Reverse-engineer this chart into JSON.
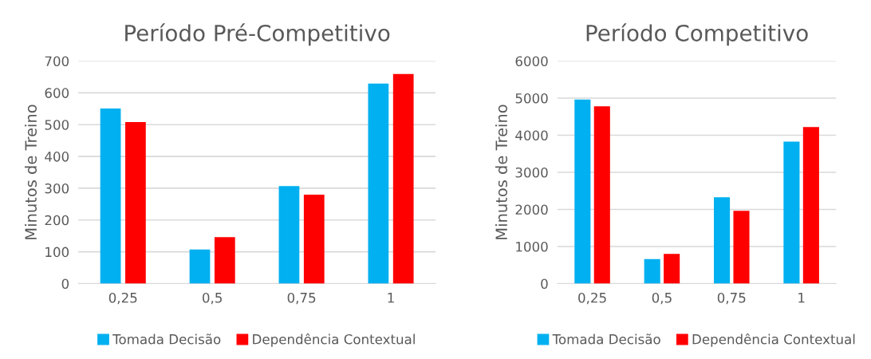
{
  "chart_data": [
    {
      "type": "bar",
      "title": "Período Pré-Competitivo",
      "ylabel": "Minutos de Treino",
      "categories": [
        "0,25",
        "0,5",
        "0,75",
        "1"
      ],
      "series": [
        {
          "name": "Tomada Decisão",
          "color": "#00b0f0",
          "values": [
            551,
            107,
            307,
            629
          ]
        },
        {
          "name": "Dependência Contextual",
          "color": "#ff0000",
          "values": [
            508,
            146,
            280,
            659
          ]
        }
      ],
      "ylim": [
        0,
        700
      ],
      "yticks": [
        0,
        100,
        200,
        300,
        400,
        500,
        600,
        700
      ],
      "grid": "y",
      "legend": "bottom"
    },
    {
      "type": "bar",
      "title": "Período Competitivo",
      "ylabel": "Minutos de Treino",
      "categories": [
        "0,25",
        "0,5",
        "0,75",
        "1"
      ],
      "series": [
        {
          "name": "Tomada Decisão",
          "color": "#00b0f0",
          "values": [
            4960,
            660,
            2330,
            3830
          ]
        },
        {
          "name": "Dependência Contextual",
          "color": "#ff0000",
          "values": [
            4780,
            800,
            1960,
            4220
          ]
        }
      ],
      "ylim": [
        0,
        6000
      ],
      "yticks": [
        0,
        1000,
        2000,
        3000,
        4000,
        5000,
        6000
      ],
      "grid": "y",
      "legend": "bottom"
    }
  ]
}
